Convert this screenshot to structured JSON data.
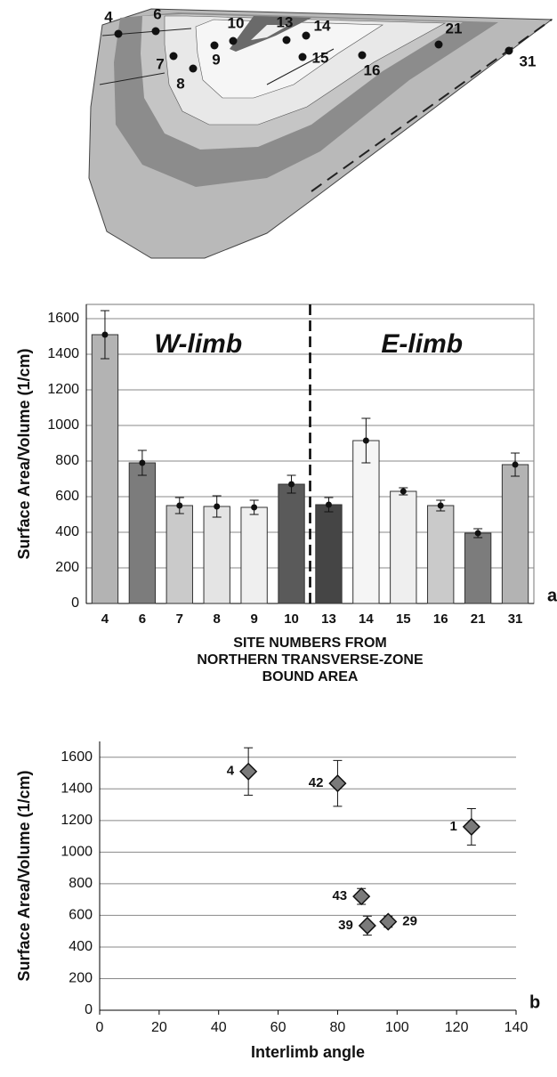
{
  "diagram": {
    "labels": [
      {
        "text": "4"
      },
      {
        "text": "6"
      },
      {
        "text": "7"
      },
      {
        "text": "8"
      },
      {
        "text": "9"
      },
      {
        "text": "10"
      },
      {
        "text": "13"
      },
      {
        "text": "14"
      },
      {
        "text": "15"
      },
      {
        "text": "16"
      },
      {
        "text": "21"
      },
      {
        "text": "31"
      }
    ]
  },
  "chart_data": [
    {
      "type": "bar",
      "ylabel": "Surface Area/Volume  (1/cm)",
      "xlabel": [
        "SITE NUMBERS FROM",
        "NORTHERN TRANSVERSE-ZONE",
        "BOUND AREA"
      ],
      "annotations": [
        "W-limb",
        "E-limb"
      ],
      "panel": "a",
      "categories": [
        "4",
        "6",
        "7",
        "8",
        "9",
        "10",
        "13",
        "14",
        "15",
        "16",
        "21",
        "31"
      ],
      "values": [
        1510,
        790,
        550,
        545,
        540,
        670,
        555,
        915,
        630,
        550,
        395,
        780
      ],
      "errors": [
        135,
        70,
        45,
        60,
        40,
        50,
        40,
        125,
        20,
        30,
        25,
        65
      ],
      "colors": [
        "#b3b3b3",
        "#7c7c7c",
        "#cacaca",
        "#e4e4e4",
        "#efefef",
        "#5a5a5a",
        "#454545",
        "#f5f5f5",
        "#efefef",
        "#cacaca",
        "#7c7c7c",
        "#b3b3b3"
      ],
      "ylim": [
        0,
        1680
      ],
      "yticks": [
        0,
        200,
        400,
        600,
        800,
        1000,
        1200,
        1400,
        1600
      ],
      "grid": true
    },
    {
      "type": "scatter",
      "ylabel": "Surface Area/Volume  (1/cm)",
      "xlabel": "Interlimb angle",
      "panel": "b",
      "x": [
        50,
        80,
        125,
        88,
        90,
        97
      ],
      "values": [
        1510,
        1435,
        1160,
        720,
        535,
        560
      ],
      "errors": [
        150,
        145,
        115,
        50,
        60,
        35
      ],
      "point_labels": [
        "4",
        "42",
        "1",
        "43",
        "39",
        "29"
      ],
      "color": "#7a7a7a",
      "xlim": [
        0,
        140
      ],
      "xticks": [
        0,
        20,
        40,
        60,
        80,
        100,
        120,
        140
      ],
      "ylim": [
        0,
        1700
      ],
      "yticks": [
        0,
        200,
        400,
        600,
        800,
        1000,
        1200,
        1400,
        1600
      ],
      "grid": true
    }
  ]
}
